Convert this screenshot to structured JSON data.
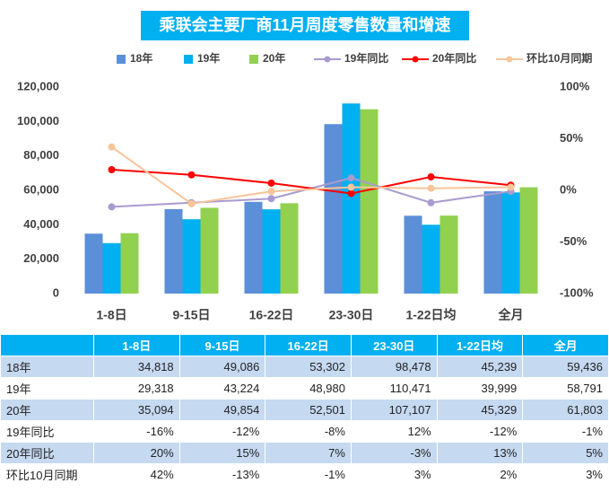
{
  "chart_data": {
    "type": "bar",
    "title": "乘联会主要厂商11月周度零售数量和增速",
    "categories": [
      "1-8日",
      "9-15日",
      "16-22日",
      "23-30日",
      "1-22日均",
      "全月"
    ],
    "series": [
      {
        "name": "18年",
        "type": "bar",
        "color": "#5b8fd8",
        "values": [
          34818,
          49086,
          53302,
          98478,
          45239,
          59436
        ],
        "value_labels": [
          "34,818",
          "49,086",
          "53,302",
          "98,478",
          "45,239",
          "59,436"
        ]
      },
      {
        "name": "19年",
        "type": "bar",
        "color": "#00b0f0",
        "values": [
          29318,
          43224,
          48980,
          110471,
          39999,
          58791
        ],
        "value_labels": [
          "29,318",
          "43,224",
          "48,980",
          "110,471",
          "39,999",
          "58,791"
        ]
      },
      {
        "name": "20年",
        "type": "bar",
        "color": "#92d050",
        "values": [
          35094,
          49854,
          52501,
          107107,
          45329,
          61803
        ],
        "value_labels": [
          "35,094",
          "49,854",
          "52,501",
          "107,107",
          "45,329",
          "61,803"
        ]
      },
      {
        "name": "19年同比",
        "type": "line",
        "axis": "y2",
        "color": "#a99bd0",
        "values": [
          -16,
          -12,
          -8,
          12,
          -12,
          -1
        ],
        "value_labels": [
          "-16%",
          "-12%",
          "-8%",
          "12%",
          "-12%",
          "-1%"
        ]
      },
      {
        "name": "20年同比",
        "type": "line",
        "axis": "y2",
        "color": "#ff0000",
        "values": [
          20,
          15,
          7,
          -3,
          13,
          5
        ],
        "value_labels": [
          "20%",
          "15%",
          "7%",
          "-3%",
          "13%",
          "5%"
        ]
      },
      {
        "name": "环比10月同期",
        "type": "line",
        "axis": "y2",
        "color": "#f8c49a",
        "values": [
          42,
          -13,
          -1,
          3,
          2,
          3
        ],
        "value_labels": [
          "42%",
          "-13%",
          "-1%",
          "3%",
          "2%",
          "3%"
        ]
      }
    ],
    "ylim": [
      0,
      120000
    ],
    "yticks": [
      0,
      {
        "value": 20000,
        "label": "20,000"
      },
      {
        "value": 40000,
        "label": "40,000"
      },
      {
        "value": 60000,
        "label": "60,000"
      },
      {
        "value": 80000,
        "label": "80,000"
      },
      {
        "value": 100000,
        "label": "100,000"
      },
      {
        "value": 120000,
        "label": "120,000"
      }
    ],
    "y2lim": [
      -100,
      100
    ],
    "y2ticks": [
      {
        "value": -100,
        "label": "-100%"
      },
      {
        "value": -50,
        "label": "-50%"
      },
      {
        "value": 0,
        "label": "0%"
      },
      {
        "value": 50,
        "label": "50%"
      },
      {
        "value": 100,
        "label": "100%"
      }
    ],
    "legend": "top"
  }
}
